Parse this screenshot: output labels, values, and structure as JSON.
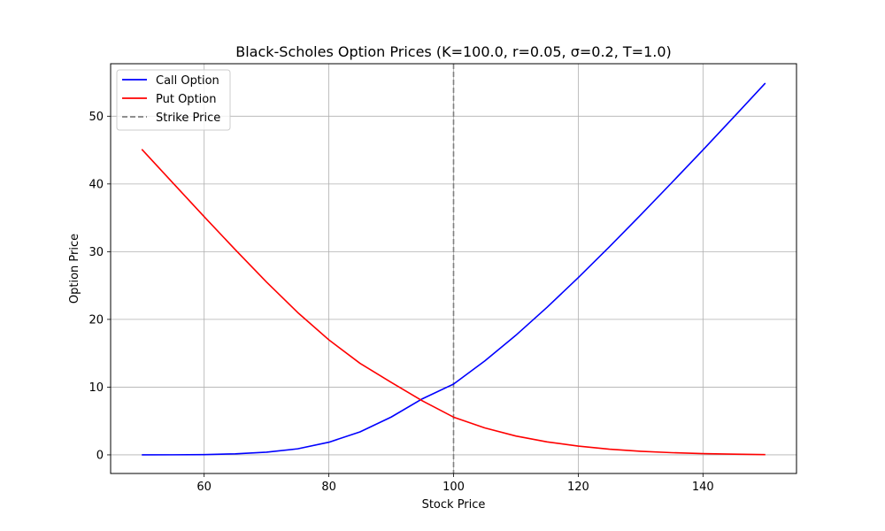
{
  "chart_data": {
    "type": "line",
    "title": "Black-Scholes Option Prices (K=100.0, r=0.05, σ=0.2, T=1.0)",
    "xlabel": "Stock Price",
    "ylabel": "Option Price",
    "xlim": [
      45,
      155
    ],
    "ylim": [
      -2.75,
      57.75
    ],
    "xticks": [
      60,
      80,
      100,
      120,
      140
    ],
    "yticks": [
      0,
      10,
      20,
      30,
      40,
      50
    ],
    "grid": true,
    "legend_position": "top-left",
    "strike_line": {
      "name": "Strike Price",
      "x": 100,
      "color": "#808080",
      "style": "dashed"
    },
    "series": [
      {
        "name": "Call Option",
        "color": "#0000ff",
        "x": [
          50,
          55,
          60,
          65,
          70,
          75,
          80,
          85,
          90,
          95,
          100,
          105,
          110,
          115,
          120,
          125,
          130,
          135,
          140,
          145,
          150
        ],
        "y": [
          0.0,
          0.01,
          0.04,
          0.15,
          0.39,
          0.89,
          1.86,
          3.39,
          5.58,
          8.28,
          10.45,
          13.86,
          17.66,
          21.79,
          26.17,
          30.72,
          35.41,
          40.19,
          45.02,
          49.93,
          54.88
        ]
      },
      {
        "name": "Put Option",
        "color": "#ff0000",
        "x": [
          50,
          55,
          60,
          65,
          70,
          75,
          80,
          85,
          90,
          95,
          100,
          105,
          110,
          115,
          120,
          125,
          130,
          135,
          140,
          145,
          150
        ],
        "y": [
          45.12,
          40.13,
          35.17,
          30.28,
          25.52,
          21.02,
          16.98,
          13.51,
          10.7,
          7.97,
          5.57,
          3.98,
          2.78,
          1.91,
          1.29,
          0.84,
          0.53,
          0.32,
          0.18,
          0.1,
          0.04
        ]
      }
    ]
  }
}
